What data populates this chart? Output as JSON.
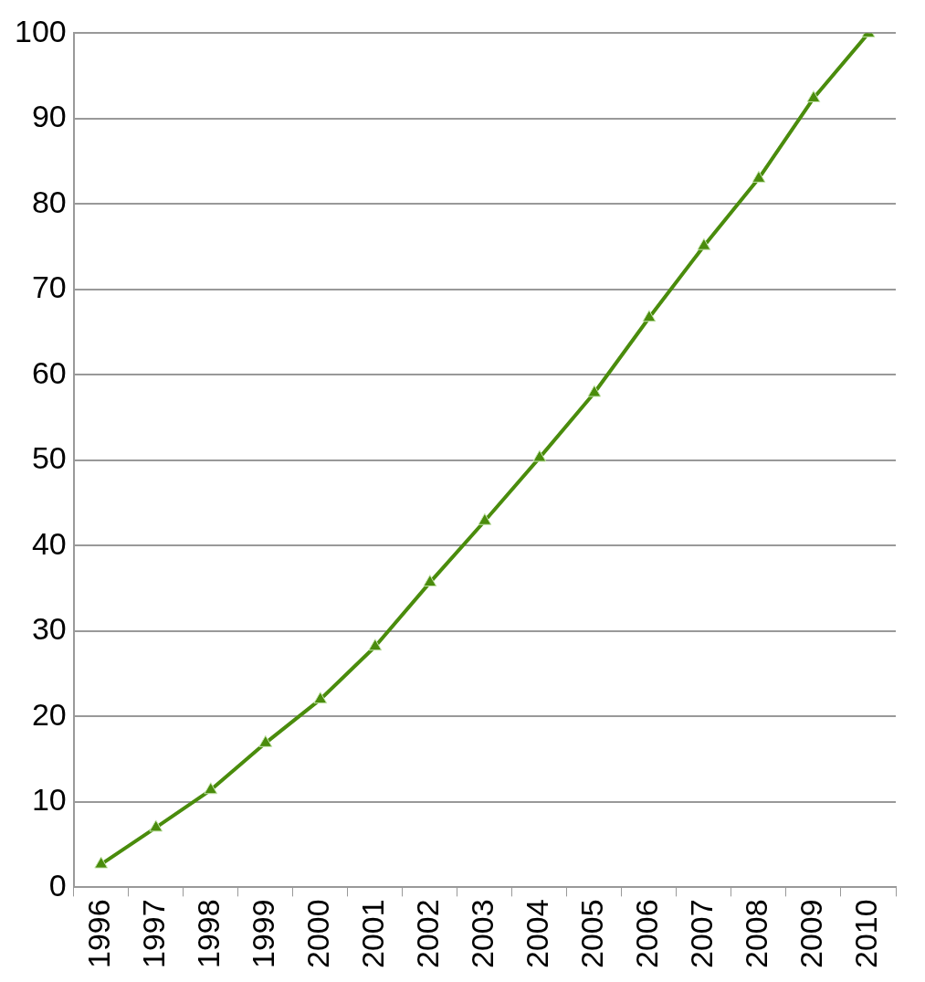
{
  "chart_data": {
    "type": "line",
    "categories": [
      "1996",
      "1997",
      "1998",
      "1999",
      "2000",
      "2001",
      "2002",
      "2003",
      "2004",
      "2005",
      "2006",
      "2007",
      "2008",
      "2009",
      "2010"
    ],
    "series": [
      {
        "color": "#4a8c0c",
        "values": [
          2.7,
          7.0,
          11.4,
          16.9,
          22.0,
          28.2,
          35.7,
          42.9,
          50.3,
          57.9,
          66.7,
          75.1,
          83.0,
          92.4,
          100
        ]
      }
    ],
    "ylim": [
      0,
      100
    ],
    "yticks": [
      0,
      10,
      20,
      30,
      40,
      50,
      60,
      70,
      80,
      90,
      100
    ],
    "grid": "y",
    "legend": false,
    "marker": "triangle",
    "line_style": "solid"
  }
}
